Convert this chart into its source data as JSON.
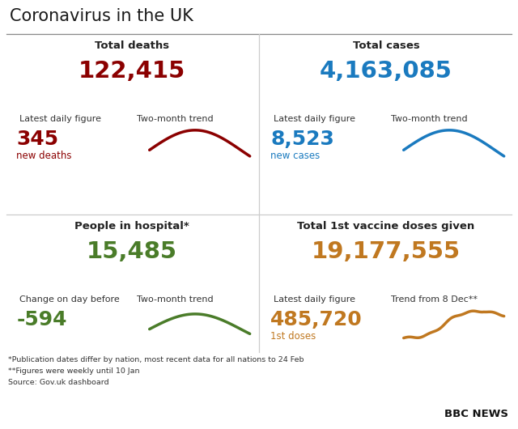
{
  "title": "Coronavirus in the UK",
  "bg_color": "#ffffff",
  "title_color": "#1a1a1a",
  "divider_color": "#aaaaaa",
  "panels": [
    {
      "label": "Total deaths",
      "big_number": "122,415",
      "big_color": "#8b0000",
      "sub_label1": "Latest daily figure",
      "sub_label2": "Two-month trend",
      "small_number": "345",
      "small_label": "new deaths",
      "small_color": "#8b0000",
      "trend_color": "#8b0000",
      "trend_type": "hump_down",
      "col": 0,
      "row": 1
    },
    {
      "label": "Total cases",
      "big_number": "4,163,085",
      "big_color": "#1a7abf",
      "sub_label1": "Latest daily figure",
      "sub_label2": "Two-month trend",
      "small_number": "8,523",
      "small_label": "new cases",
      "small_color": "#1a7abf",
      "trend_color": "#1a7abf",
      "trend_type": "hump_down",
      "col": 1,
      "row": 1
    },
    {
      "label": "People in hospital*",
      "big_number": "15,485",
      "big_color": "#4a7c29",
      "sub_label1": "Change on day before",
      "sub_label2": "Two-month trend",
      "small_number": "-594",
      "small_label": "",
      "small_color": "#4a7c29",
      "trend_color": "#4a7c29",
      "trend_type": "hump_down",
      "col": 0,
      "row": 0
    },
    {
      "label": "Total 1st vaccine doses given",
      "big_number": "19,177,555",
      "big_color": "#c07820",
      "sub_label1": "Latest daily figure",
      "sub_label2": "Trend from 8 Dec**",
      "small_number": "485,720",
      "small_label": "1st doses",
      "small_color": "#c07820",
      "trend_color": "#c07820",
      "trend_type": "rising_plateau",
      "col": 1,
      "row": 0
    }
  ],
  "footnotes": [
    "*Publication dates differ by nation, most recent data for all nations to 24 Feb",
    "**Figures were weekly until 10 Jan",
    "Source: Gov.uk dashboard"
  ]
}
